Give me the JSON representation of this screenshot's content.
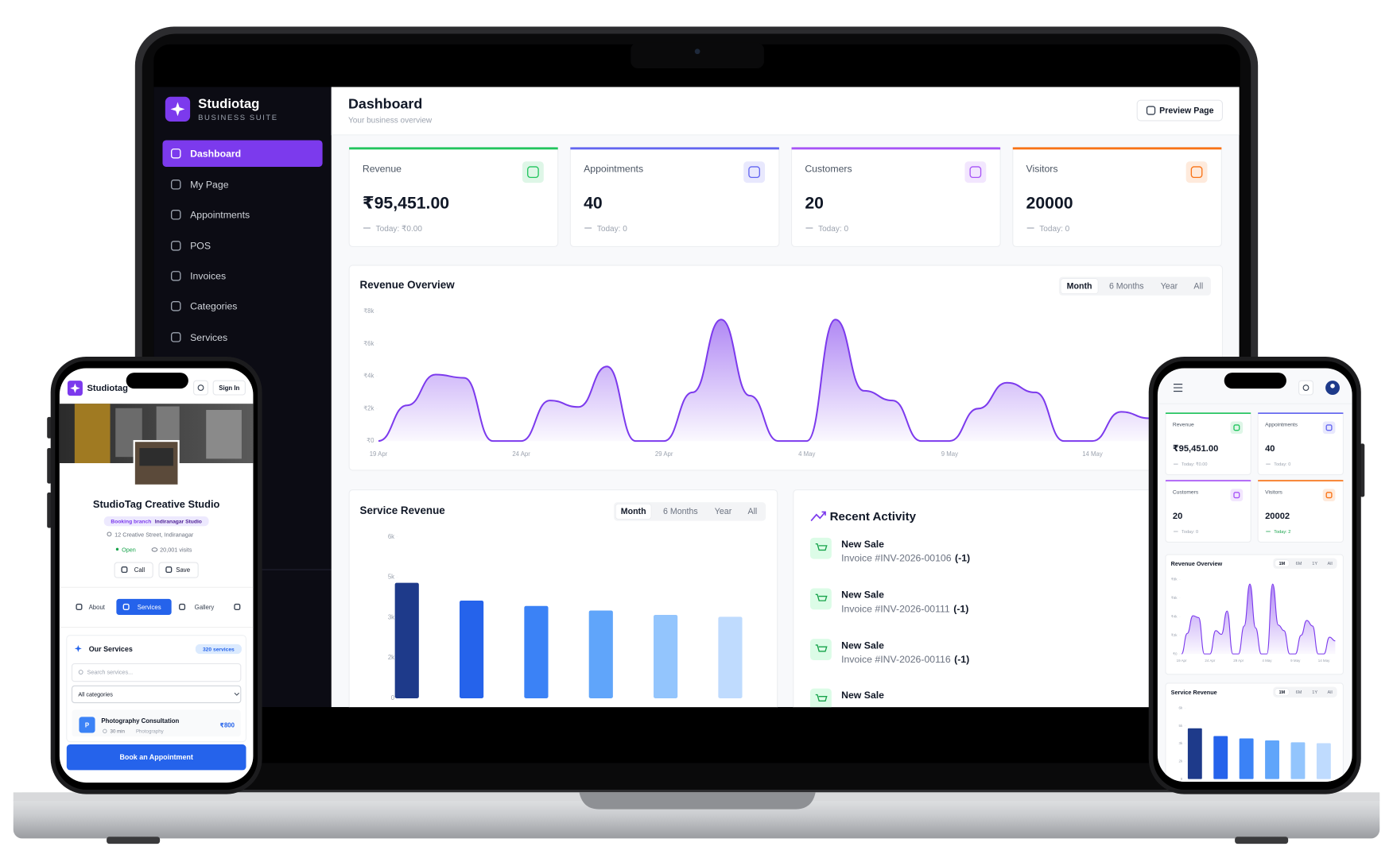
{
  "laptop": {
    "sidebar": {
      "brand": "Studiotag",
      "tagline": "BUSINESS SUITE",
      "nav": [
        "Dashboard",
        "My Page",
        "Appointments",
        "POS",
        "Invoices",
        "Categories",
        "Services"
      ]
    },
    "header": {
      "title": "Dashboard",
      "subtitle": "Your business overview",
      "button": "Preview Page"
    },
    "stats": [
      {
        "label": "Revenue",
        "value": "₹95,451.00",
        "today": "Today: ₹0.00",
        "color": "#22c55e"
      },
      {
        "label": "Appointments",
        "value": "40",
        "today": "Today: 0",
        "color": "#6366f1"
      },
      {
        "label": "Customers",
        "value": "20",
        "today": "Today: 0",
        "color": "#a855f7"
      },
      {
        "label": "Visitors",
        "value": "20000",
        "today": "Today: 0",
        "color": "#f97316"
      }
    ],
    "revenue_overview": {
      "type": "area",
      "title": "Revenue Overview",
      "ranges": [
        "Month",
        "6 Months",
        "Year",
        "All"
      ],
      "categories": [
        "19 Apr",
        null,
        null,
        null,
        null,
        "24 Apr",
        null,
        null,
        null,
        null,
        "29 Apr",
        null,
        null,
        null,
        null,
        "4 May",
        null,
        null,
        null,
        null,
        "9 May",
        null,
        null,
        null,
        null,
        "14 May",
        null,
        null
      ],
      "values": [
        0,
        2200,
        4100,
        3900,
        0,
        0,
        2500,
        2100,
        4600,
        0,
        0,
        3000,
        7500,
        2800,
        0,
        0,
        7500,
        3100,
        2500,
        0,
        0,
        2000,
        3600,
        3000,
        0,
        0,
        1800,
        1400
      ],
      "color": "#7c3aed",
      "ylim": [
        0,
        8000
      ],
      "yticks": [
        {
          "value": 0,
          "label": "₹0"
        },
        {
          "value": 2000,
          "label": "₹2k"
        },
        {
          "value": 4000,
          "label": "₹4k"
        },
        {
          "value": 6000,
          "label": "₹6k"
        },
        {
          "value": 8000,
          "label": "₹8k"
        }
      ]
    },
    "service_revenue": {
      "type": "bar",
      "title": "Service Revenue",
      "ranges": [
        "Month",
        "6 Months",
        "Year",
        "All"
      ],
      "categories": [
        null,
        null,
        null,
        null,
        null,
        null
      ],
      "values": [
        4290,
        3630,
        3430,
        3260,
        3100,
        3030
      ],
      "colors": [
        "#1e3a8a",
        "#2563eb",
        "#3b82f6",
        "#60a5fa",
        "#93c5fd",
        "#bfdbfe"
      ],
      "ylim": [
        0,
        6000
      ],
      "yticks": [
        0,
        {
          "value": 1500,
          "label": "2k"
        },
        {
          "value": 3000,
          "label": "3k"
        },
        {
          "value": 4500,
          "label": "5k"
        },
        {
          "value": 6000,
          "label": "6k"
        }
      ]
    },
    "recent_activity": {
      "title": "Recent Activity",
      "items": [
        {
          "title": "New Sale",
          "detail": "Invoice #INV-2026-00106",
          "qty": "(-1)"
        },
        {
          "title": "New Sale",
          "detail": "Invoice #INV-2026-00111",
          "qty": "(-1)"
        },
        {
          "title": "New Sale",
          "detail": "Invoice #INV-2026-00116",
          "qty": "(-1)"
        },
        {
          "title": "New Sale"
        }
      ]
    }
  },
  "left_phone": {
    "brand": "Studiotag",
    "sign_in": "Sign In",
    "business_name": "StudioTag Creative Studio",
    "branch_label": "Booking branch",
    "branch": "Indiranagar Studio",
    "address": "12 Creative Street, Indiranagar",
    "status": "Open",
    "visits": "20,001 visits",
    "actions": [
      "Call",
      "Save"
    ],
    "tabs": [
      "About",
      "Services",
      "Gallery"
    ],
    "services_title": "Our Services",
    "services_count": "320 services",
    "search_placeholder": "Search services...",
    "category_filter": "All categories",
    "service": {
      "initial": "P",
      "name": "Photography Consultation",
      "duration": "30 min",
      "category": "Photography",
      "price": "₹800"
    },
    "cta": "Book an Appointment"
  },
  "right_phone": {
    "stats": [
      {
        "label": "Revenue",
        "value": "₹95,451.00",
        "today": "Today: ₹0.00",
        "color": "#22c55e"
      },
      {
        "label": "Appointments",
        "value": "40",
        "today": "Today: 0",
        "color": "#6366f1"
      },
      {
        "label": "Customers",
        "value": "20",
        "today": "Today: 0",
        "color": "#a855f7"
      },
      {
        "label": "Visitors",
        "value": "20002",
        "today": "Today: 2",
        "color": "#f97316"
      }
    ],
    "ranges": [
      "1M",
      "6M",
      "1Y",
      "All"
    ]
  }
}
